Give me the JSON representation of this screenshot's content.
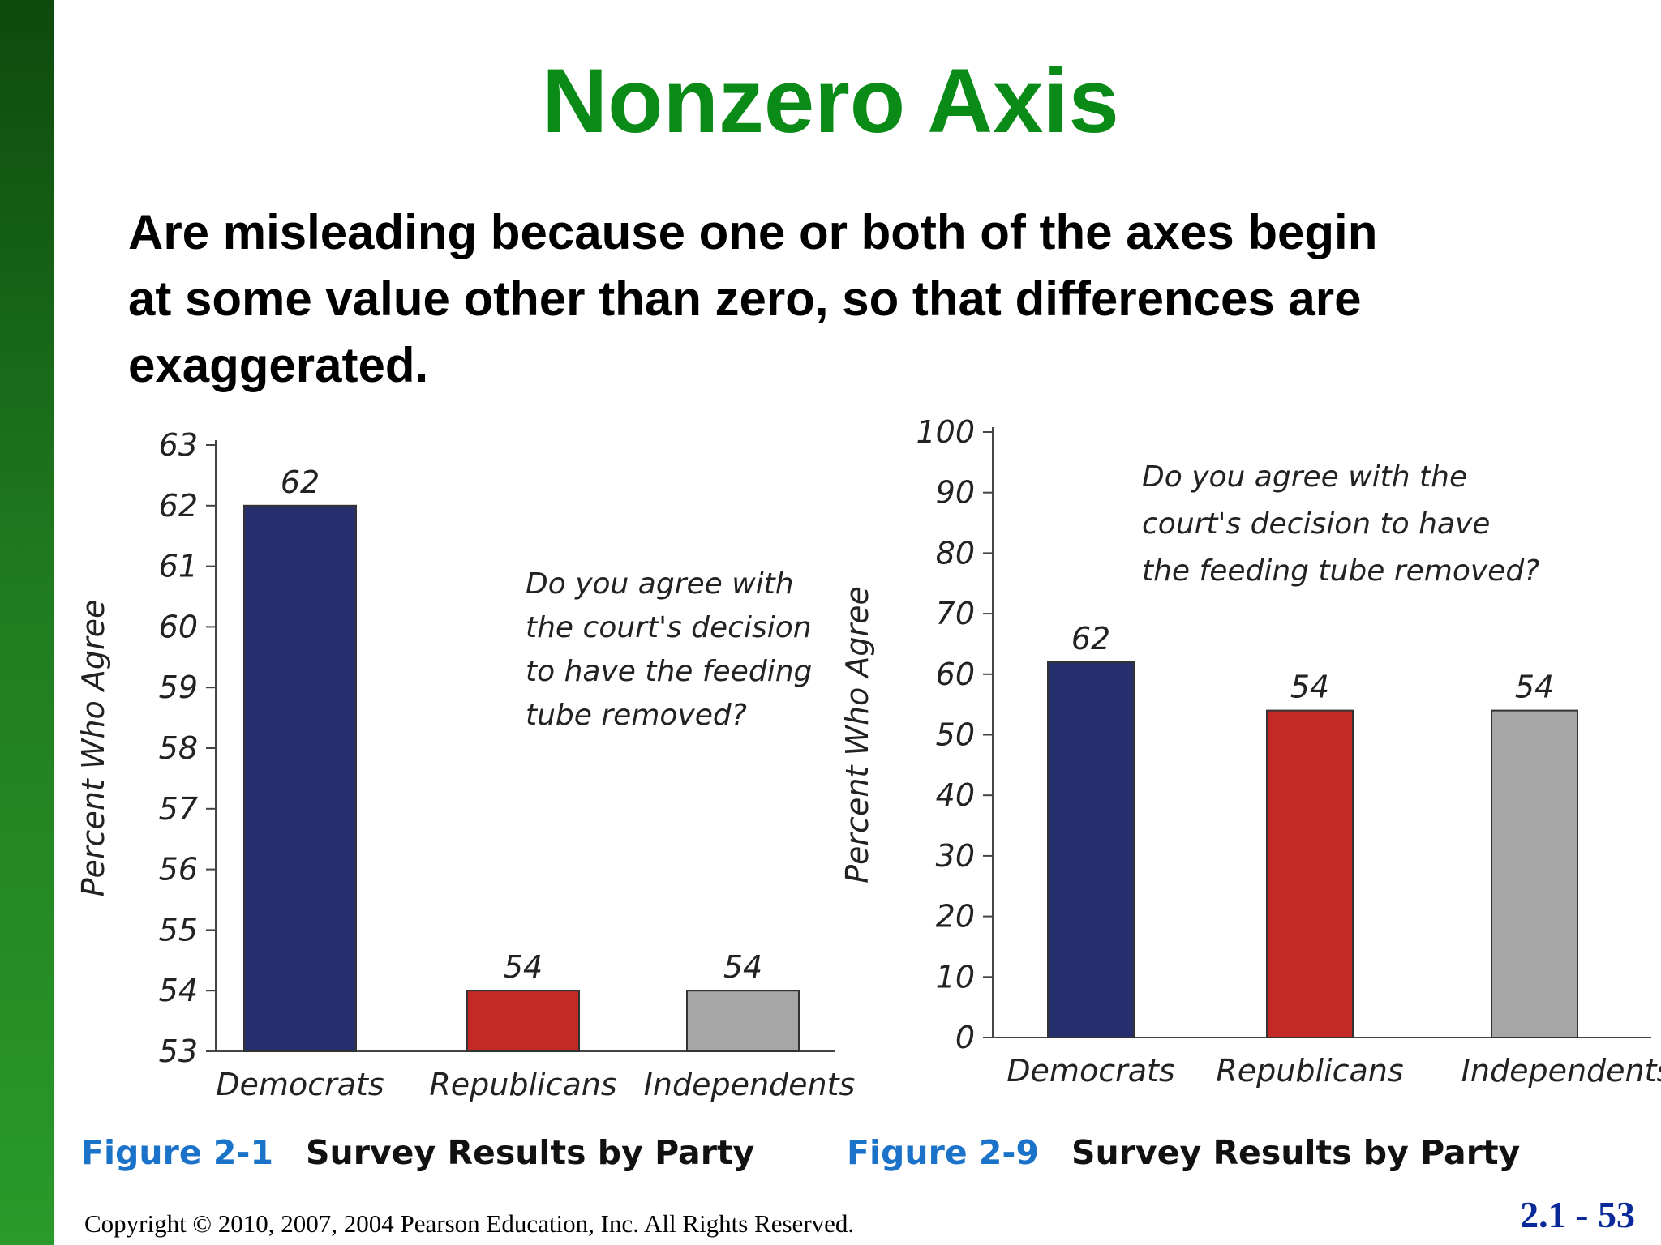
{
  "slide": {
    "title": "Nonzero Axis",
    "body": "Are misleading because one or both of the axes begin at some value other than zero, so that differences are exaggerated.",
    "copyright": "Copyright © 2010, 2007, 2004 Pearson Education, Inc. All Rights Reserved.",
    "slide_number": "2.1 - 53",
    "colors": {
      "title": "#0a8a16",
      "sidebar": "#1f7a1f",
      "figure_number": "#1a73c8",
      "slide_number": "#0a2a9a"
    }
  },
  "chart_data": [
    {
      "type": "bar",
      "figure_number": "Figure 2-1",
      "caption": "Survey Results by Party",
      "annotation": [
        "Do you agree with",
        "the court's decision",
        "to have the feeding",
        "tube removed?"
      ],
      "categories": [
        "Democrats",
        "Republicans",
        "Independents"
      ],
      "values": [
        62,
        54,
        54
      ],
      "data_labels": [
        "62",
        "54",
        "54"
      ],
      "colors": [
        "#262f6e",
        "#c42a25",
        "#a6a6a6"
      ],
      "ylabel": "Percent Who Agree",
      "ylim": [
        53,
        63
      ],
      "yticks": [
        53,
        54,
        55,
        56,
        57,
        58,
        59,
        60,
        61,
        62,
        63
      ],
      "grid": false
    },
    {
      "type": "bar",
      "figure_number": "Figure 2-9",
      "caption": "Survey Results by Party",
      "annotation": [
        "Do you agree with the",
        "court's decision to have",
        "the feeding tube removed?"
      ],
      "categories": [
        "Democrats",
        "Republicans",
        "Independents"
      ],
      "values": [
        62,
        54,
        54
      ],
      "data_labels": [
        "62",
        "54",
        "54"
      ],
      "colors": [
        "#262f6e",
        "#c42a25",
        "#a6a6a6"
      ],
      "ylabel": "Percent Who Agree",
      "ylim": [
        0,
        100
      ],
      "yticks": [
        0,
        10,
        20,
        30,
        40,
        50,
        60,
        70,
        80,
        90,
        100
      ],
      "grid": false
    }
  ]
}
